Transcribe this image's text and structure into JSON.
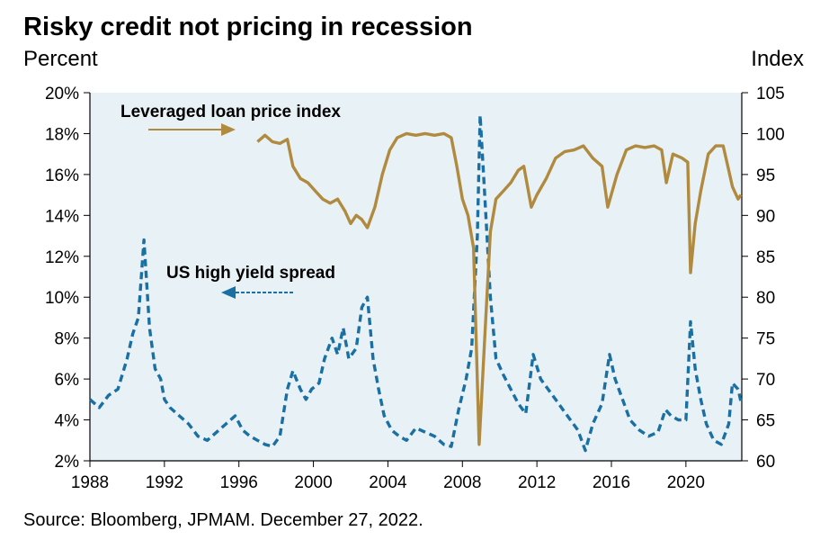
{
  "title": "Risky credit not pricing in recession",
  "left_unit": "Percent",
  "right_unit": "Index",
  "source": "Source: Bloomberg, JPMAM. December 27, 2022.",
  "colors": {
    "plot_bg": "#e8f2f6",
    "loan": "#b08a3e",
    "spread": "#1a6fa3"
  },
  "chart_data": {
    "type": "line",
    "title": "Risky credit not pricing in recession",
    "x_ticks": [
      "1988",
      "1992",
      "1996",
      "2000",
      "2004",
      "2008",
      "2012",
      "2016",
      "2020"
    ],
    "xlim": [
      1988,
      2023
    ],
    "y_left": {
      "label": "Percent",
      "ylim": [
        2,
        20
      ],
      "ticks": [
        "2%",
        "4%",
        "6%",
        "8%",
        "10%",
        "12%",
        "14%",
        "16%",
        "18%",
        "20%"
      ]
    },
    "y_right": {
      "label": "Index",
      "ylim": [
        60,
        105
      ],
      "ticks": [
        "60",
        "65",
        "70",
        "75",
        "80",
        "85",
        "90",
        "95",
        "100",
        "105"
      ]
    },
    "grid": false,
    "annotations": [
      {
        "text": "Leveraged loan price index",
        "series": "Leveraged loan price index"
      },
      {
        "text": "US high yield spread",
        "series": "US high yield spread"
      }
    ],
    "series": [
      {
        "name": "US high yield spread",
        "axis": "left",
        "style": "dashed",
        "points": [
          [
            1988.0,
            5.0
          ],
          [
            1988.5,
            4.6
          ],
          [
            1989.0,
            5.2
          ],
          [
            1989.5,
            5.5
          ],
          [
            1990.0,
            7.0
          ],
          [
            1990.3,
            8.2
          ],
          [
            1990.6,
            9.0
          ],
          [
            1990.9,
            12.8
          ],
          [
            1991.2,
            8.5
          ],
          [
            1991.5,
            6.5
          ],
          [
            1991.8,
            6.0
          ],
          [
            1992.0,
            5.0
          ],
          [
            1992.3,
            4.6
          ],
          [
            1992.8,
            4.2
          ],
          [
            1993.3,
            3.8
          ],
          [
            1993.8,
            3.2
          ],
          [
            1994.3,
            3.0
          ],
          [
            1994.8,
            3.4
          ],
          [
            1995.3,
            3.8
          ],
          [
            1995.8,
            4.2
          ],
          [
            1996.2,
            3.5
          ],
          [
            1996.6,
            3.2
          ],
          [
            1997.0,
            3.0
          ],
          [
            1997.4,
            2.8
          ],
          [
            1997.8,
            2.7
          ],
          [
            1998.2,
            3.2
          ],
          [
            1998.6,
            5.5
          ],
          [
            1998.9,
            6.4
          ],
          [
            1999.3,
            5.5
          ],
          [
            1999.6,
            5.0
          ],
          [
            1999.9,
            5.5
          ],
          [
            2000.3,
            5.8
          ],
          [
            2000.6,
            7.0
          ],
          [
            2001.0,
            8.0
          ],
          [
            2001.3,
            7.2
          ],
          [
            2001.6,
            8.5
          ],
          [
            2001.9,
            7.0
          ],
          [
            2002.3,
            7.5
          ],
          [
            2002.6,
            9.5
          ],
          [
            2002.9,
            10.0
          ],
          [
            2003.2,
            7.0
          ],
          [
            2003.5,
            5.5
          ],
          [
            2003.8,
            4.2
          ],
          [
            2004.2,
            3.5
          ],
          [
            2004.6,
            3.2
          ],
          [
            2005.0,
            3.0
          ],
          [
            2005.5,
            3.6
          ],
          [
            2006.0,
            3.4
          ],
          [
            2006.5,
            3.2
          ],
          [
            2007.0,
            2.8
          ],
          [
            2007.4,
            2.7
          ],
          [
            2007.8,
            4.5
          ],
          [
            2008.2,
            6.0
          ],
          [
            2008.5,
            7.5
          ],
          [
            2008.8,
            13.0
          ],
          [
            2008.95,
            18.9
          ],
          [
            2009.2,
            15.0
          ],
          [
            2009.5,
            10.0
          ],
          [
            2009.8,
            7.0
          ],
          [
            2010.2,
            6.2
          ],
          [
            2010.6,
            5.5
          ],
          [
            2011.0,
            4.8
          ],
          [
            2011.4,
            4.3
          ],
          [
            2011.8,
            7.2
          ],
          [
            2012.2,
            6.0
          ],
          [
            2012.6,
            5.5
          ],
          [
            2013.0,
            5.0
          ],
          [
            2013.4,
            4.5
          ],
          [
            2013.8,
            4.0
          ],
          [
            2014.2,
            3.5
          ],
          [
            2014.6,
            2.5
          ],
          [
            2015.0,
            3.8
          ],
          [
            2015.5,
            4.8
          ],
          [
            2015.9,
            7.2
          ],
          [
            2016.2,
            6.0
          ],
          [
            2016.6,
            5.0
          ],
          [
            2017.0,
            4.0
          ],
          [
            2017.5,
            3.5
          ],
          [
            2018.0,
            3.2
          ],
          [
            2018.5,
            3.4
          ],
          [
            2018.9,
            4.5
          ],
          [
            2019.2,
            4.2
          ],
          [
            2019.6,
            4.0
          ],
          [
            2020.0,
            4.0
          ],
          [
            2020.25,
            8.8
          ],
          [
            2020.5,
            6.5
          ],
          [
            2020.8,
            5.0
          ],
          [
            2021.1,
            3.8
          ],
          [
            2021.5,
            3.0
          ],
          [
            2021.9,
            2.8
          ],
          [
            2022.3,
            3.8
          ],
          [
            2022.5,
            5.8
          ],
          [
            2022.8,
            5.5
          ],
          [
            2022.95,
            4.9
          ]
        ]
      },
      {
        "name": "Leveraged loan price index",
        "axis": "right",
        "style": "solid",
        "points": [
          [
            1997.0,
            99.0
          ],
          [
            1997.4,
            99.8
          ],
          [
            1997.8,
            99.0
          ],
          [
            1998.2,
            98.8
          ],
          [
            1998.6,
            99.3
          ],
          [
            1998.9,
            96.0
          ],
          [
            1999.3,
            94.5
          ],
          [
            1999.7,
            94.0
          ],
          [
            2000.1,
            93.0
          ],
          [
            2000.5,
            92.0
          ],
          [
            2000.9,
            91.5
          ],
          [
            2001.3,
            92.0
          ],
          [
            2001.7,
            90.5
          ],
          [
            2002.0,
            89.0
          ],
          [
            2002.3,
            90.0
          ],
          [
            2002.6,
            89.5
          ],
          [
            2002.9,
            88.5
          ],
          [
            2003.3,
            91.0
          ],
          [
            2003.7,
            95.0
          ],
          [
            2004.1,
            98.0
          ],
          [
            2004.5,
            99.5
          ],
          [
            2005.0,
            100.0
          ],
          [
            2005.5,
            99.8
          ],
          [
            2006.0,
            100.0
          ],
          [
            2006.5,
            99.8
          ],
          [
            2007.0,
            100.0
          ],
          [
            2007.4,
            99.5
          ],
          [
            2007.7,
            96.0
          ],
          [
            2008.0,
            92.0
          ],
          [
            2008.3,
            90.0
          ],
          [
            2008.6,
            86.0
          ],
          [
            2008.9,
            62.0
          ],
          [
            2009.2,
            75.0
          ],
          [
            2009.5,
            88.0
          ],
          [
            2009.8,
            92.0
          ],
          [
            2010.2,
            93.0
          ],
          [
            2010.6,
            94.0
          ],
          [
            2011.0,
            95.5
          ],
          [
            2011.3,
            96.0
          ],
          [
            2011.7,
            91.0
          ],
          [
            2012.0,
            92.5
          ],
          [
            2012.5,
            94.5
          ],
          [
            2013.0,
            97.0
          ],
          [
            2013.5,
            97.8
          ],
          [
            2014.0,
            98.0
          ],
          [
            2014.5,
            98.5
          ],
          [
            2015.0,
            97.0
          ],
          [
            2015.5,
            96.0
          ],
          [
            2015.8,
            91.0
          ],
          [
            2016.3,
            95.0
          ],
          [
            2016.8,
            98.0
          ],
          [
            2017.3,
            98.5
          ],
          [
            2017.8,
            98.3
          ],
          [
            2018.3,
            98.5
          ],
          [
            2018.7,
            98.0
          ],
          [
            2018.95,
            94.0
          ],
          [
            2019.3,
            97.5
          ],
          [
            2019.8,
            97.0
          ],
          [
            2020.1,
            96.5
          ],
          [
            2020.25,
            83.0
          ],
          [
            2020.5,
            89.0
          ],
          [
            2020.8,
            93.0
          ],
          [
            2021.2,
            97.5
          ],
          [
            2021.6,
            98.5
          ],
          [
            2022.0,
            98.5
          ],
          [
            2022.3,
            95.5
          ],
          [
            2022.5,
            93.5
          ],
          [
            2022.8,
            92.0
          ],
          [
            2022.95,
            92.5
          ]
        ]
      }
    ]
  }
}
